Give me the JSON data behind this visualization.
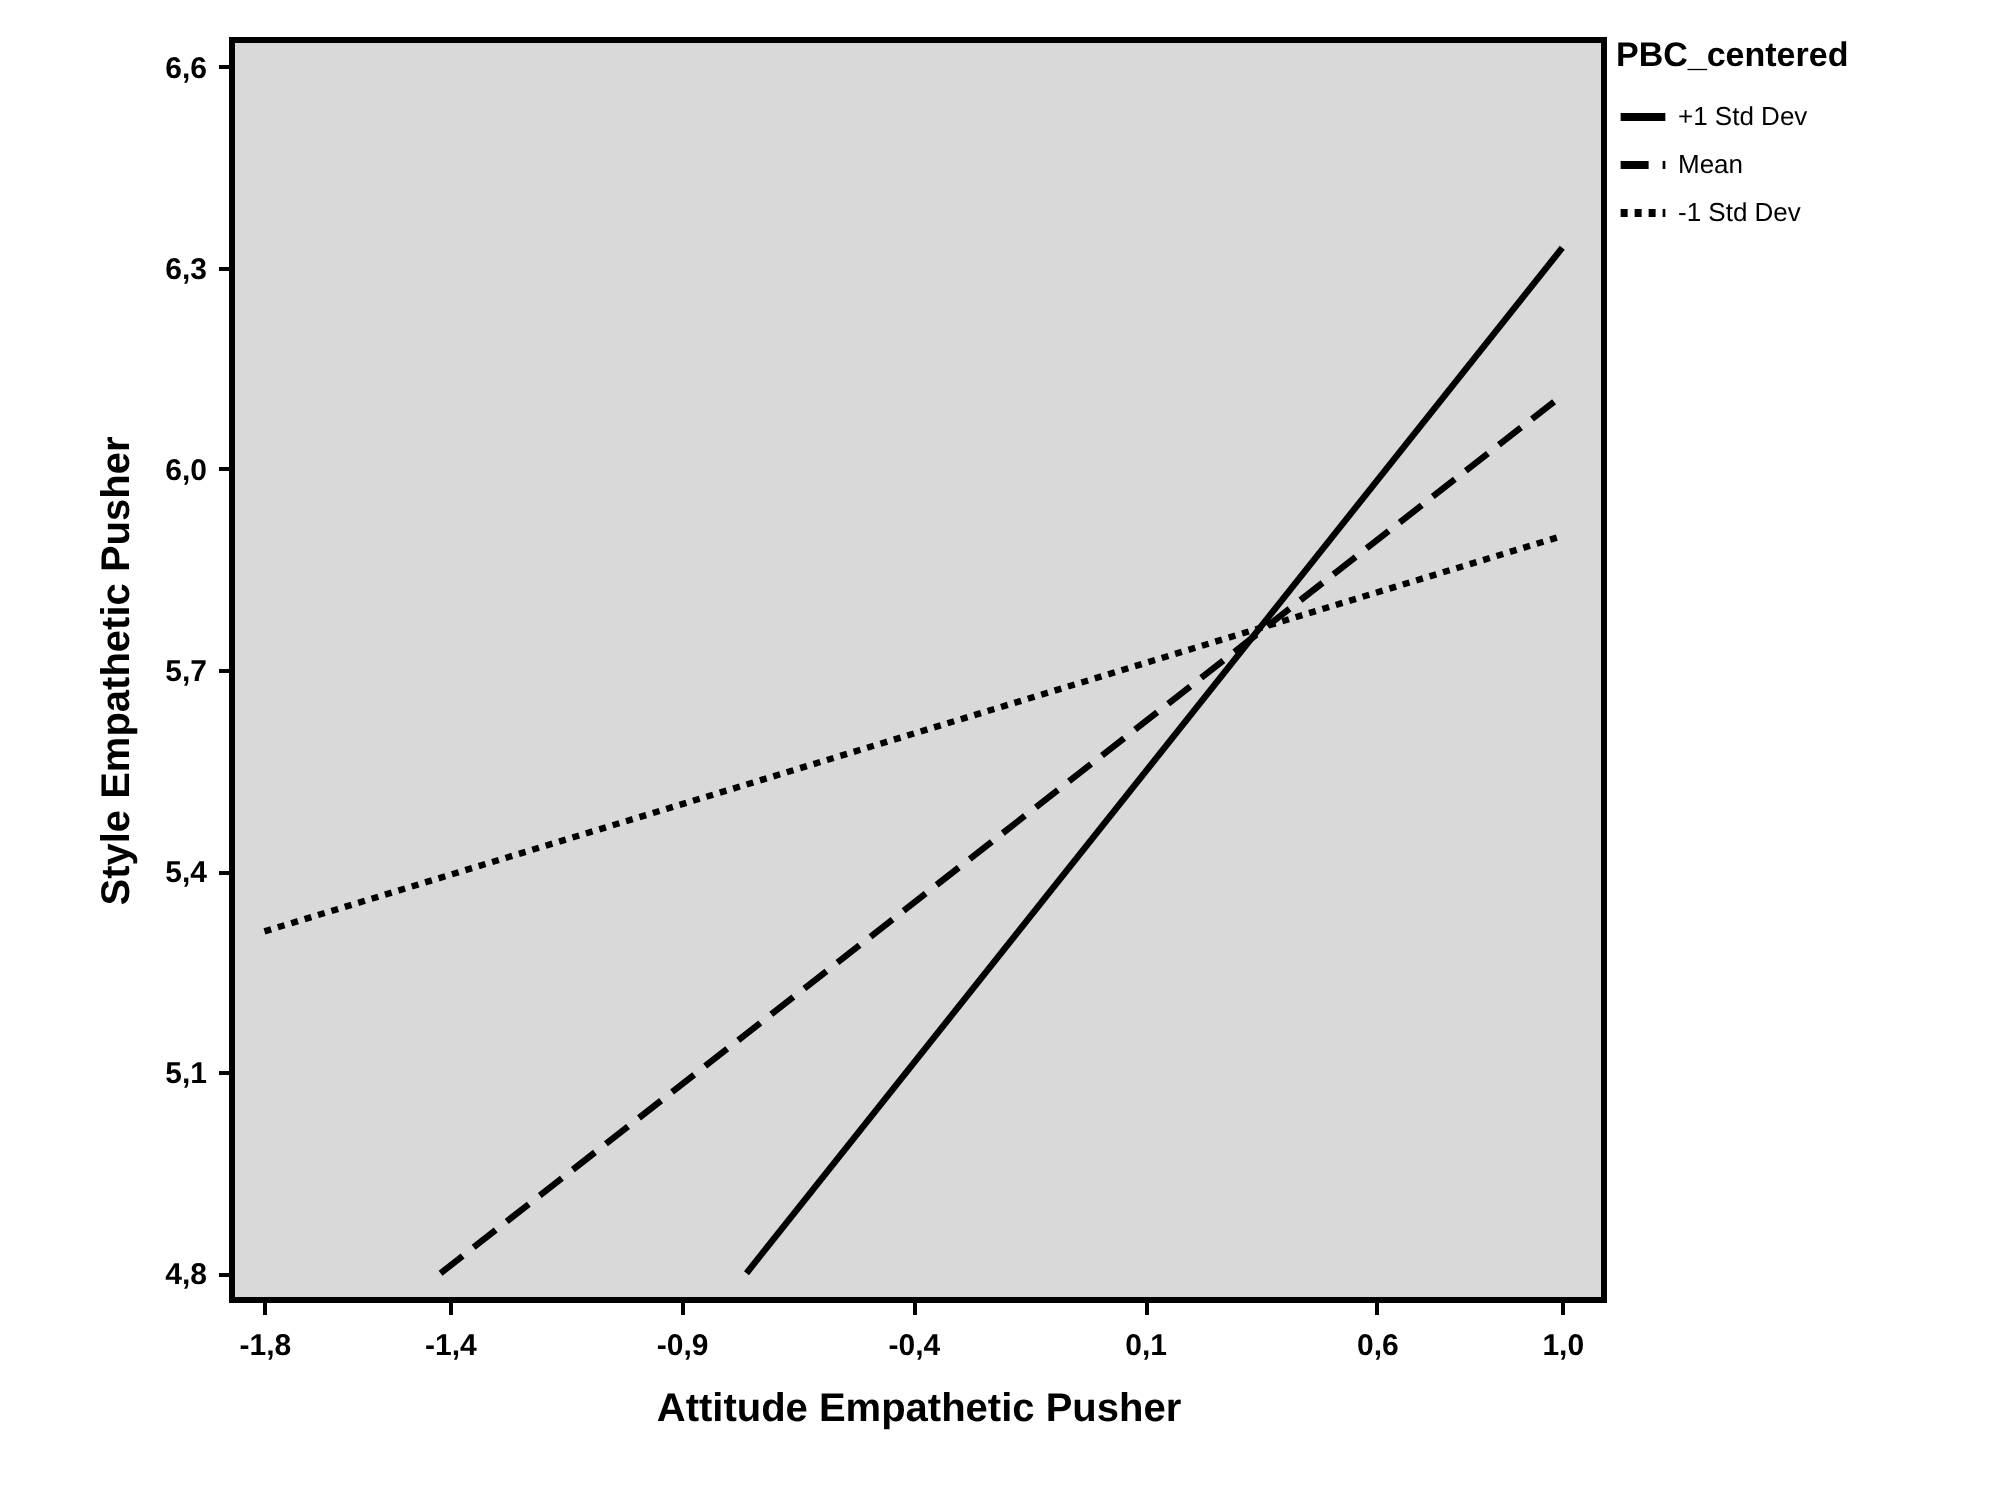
{
  "chart_data": {
    "type": "line",
    "xlabel": "Attitude Empathetic Pusher",
    "ylabel": "Style Empathetic Pusher",
    "legend_title": "PBC_centered",
    "series": [
      {
        "name": "+1 Std Dev",
        "color": "#000000",
        "line_style": "solid",
        "x": [
          -0.76,
          1.0
        ],
        "values": [
          4.8,
          6.33
        ]
      },
      {
        "name": "Mean",
        "color": "#000000",
        "line_style": "dashed",
        "x": [
          -1.42,
          1.0
        ],
        "values": [
          4.8,
          6.11
        ]
      },
      {
        "name": "-1 Std Dev",
        "color": "#000000",
        "line_style": "dotted",
        "x": [
          -1.8,
          1.0
        ],
        "values": [
          5.31,
          5.9
        ]
      }
    ],
    "xlim": [
      -1.87,
      1.09
    ],
    "ylim": [
      4.76,
      6.64
    ],
    "xticks": [
      {
        "value": -1.8,
        "label": "-1,8"
      },
      {
        "value": -1.4,
        "label": "-1,4"
      },
      {
        "value": -0.9,
        "label": "-0,9"
      },
      {
        "value": -0.4,
        "label": "-0,4"
      },
      {
        "value": 0.1,
        "label": "0,1"
      },
      {
        "value": 0.6,
        "label": "0,6"
      },
      {
        "value": 1.0,
        "label": "1,0"
      }
    ],
    "yticks": [
      {
        "value": 4.8,
        "label": "4,8"
      },
      {
        "value": 5.1,
        "label": "5,1"
      },
      {
        "value": 5.4,
        "label": "5,4"
      },
      {
        "value": 5.7,
        "label": "5,7"
      },
      {
        "value": 6.0,
        "label": "6,0"
      },
      {
        "value": 6.3,
        "label": "6,3"
      },
      {
        "value": 6.6,
        "label": "6,6"
      }
    ],
    "grid": false,
    "legend": "top right",
    "marker": "none"
  }
}
